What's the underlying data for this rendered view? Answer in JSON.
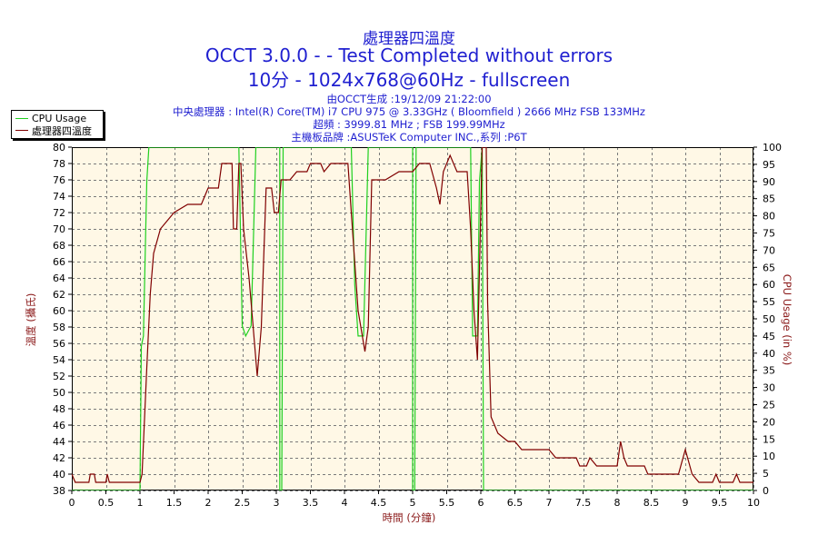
{
  "header": {
    "title_line1": "處理器四溫度",
    "title_line2": "OCCT 3.0.0 -  - Test Completed without errors",
    "title_line3": "10分 - 1024x768@60Hz - fullscreen",
    "sub1": "由OCCT生成 :19/12/09 21:22:00",
    "sub2": "中央處理器 : Intel(R) Core(TM) i7 CPU 975 @ 3.33GHz ( Bloomfield ) 2666 MHz FSB 133MHz",
    "sub3": "超頻 : 3999.81 MHz ; FSB 199.99MHz",
    "sub4": "主機板品牌 :ASUSTeK Computer INC.,系列 :P6T"
  },
  "colors": {
    "temp_line": "#800000",
    "usage_line": "#1fd01f",
    "plot_bg": "#fff8e6",
    "title": "#1f1fd0",
    "axis_label": "#8b1a1a"
  },
  "chart_data": {
    "type": "line",
    "xlabel": "時間 (分鐘)",
    "ylabel": "溫度 (攝氏)",
    "y2label": "CPU Usage (in %)",
    "xlim": [
      0,
      10
    ],
    "ylim": [
      38,
      80
    ],
    "y2lim": [
      0,
      100
    ],
    "xticks": [
      "0",
      "0.5",
      "1",
      "1.5",
      "2",
      "2.5",
      "3",
      "3.5",
      "4",
      "4.5",
      "5",
      "5.5",
      "6",
      "6.5",
      "7",
      "7.5",
      "8",
      "8.5",
      "9",
      "9.5",
      "10"
    ],
    "yticks": [
      "38",
      "40",
      "42",
      "44",
      "46",
      "48",
      "50",
      "52",
      "54",
      "56",
      "58",
      "60",
      "62",
      "64",
      "66",
      "68",
      "70",
      "72",
      "74",
      "76",
      "78",
      "80"
    ],
    "y2ticks": [
      "0",
      "5",
      "10",
      "15",
      "20",
      "25",
      "30",
      "35",
      "40",
      "45",
      "50",
      "55",
      "60",
      "65",
      "70",
      "75",
      "80",
      "85",
      "90",
      "95",
      "100"
    ],
    "grid": true,
    "legend_position": "top-left",
    "series": [
      {
        "name": "CPU Usage",
        "axis": "right",
        "points": [
          [
            0,
            0
          ],
          [
            1,
            0
          ],
          [
            1.02,
            42
          ],
          [
            1.05,
            45
          ],
          [
            1.1,
            90
          ],
          [
            1.13,
            100
          ],
          [
            2.45,
            100
          ],
          [
            2.5,
            48
          ],
          [
            2.55,
            45
          ],
          [
            2.63,
            48
          ],
          [
            2.7,
            100
          ],
          [
            3.05,
            100
          ],
          [
            3.05,
            0
          ],
          [
            3.08,
            0
          ],
          [
            3.1,
            100
          ],
          [
            4.1,
            100
          ],
          [
            4.15,
            60
          ],
          [
            4.2,
            45
          ],
          [
            4.28,
            45
          ],
          [
            4.35,
            100
          ],
          [
            5,
            100
          ],
          [
            5,
            0
          ],
          [
            5.03,
            0
          ],
          [
            5.05,
            100
          ],
          [
            5.85,
            100
          ],
          [
            5.88,
            45
          ],
          [
            5.95,
            45
          ],
          [
            5.98,
            90
          ],
          [
            6.02,
            100
          ],
          [
            6.04,
            0
          ],
          [
            10,
            0
          ]
        ]
      },
      {
        "name": "處理器四溫度",
        "axis": "left",
        "points": [
          [
            0,
            40
          ],
          [
            0.05,
            39
          ],
          [
            0.25,
            39
          ],
          [
            0.27,
            40
          ],
          [
            0.33,
            40
          ],
          [
            0.35,
            39
          ],
          [
            0.5,
            39
          ],
          [
            0.52,
            40
          ],
          [
            0.55,
            39
          ],
          [
            1,
            39
          ],
          [
            1.03,
            40
          ],
          [
            1.1,
            53
          ],
          [
            1.15,
            62
          ],
          [
            1.2,
            67
          ],
          [
            1.3,
            70
          ],
          [
            1.4,
            71
          ],
          [
            1.5,
            72
          ],
          [
            1.7,
            73
          ],
          [
            1.9,
            73
          ],
          [
            2,
            75
          ],
          [
            2.15,
            75
          ],
          [
            2.2,
            78
          ],
          [
            2.35,
            78
          ],
          [
            2.37,
            70
          ],
          [
            2.42,
            70
          ],
          [
            2.45,
            78
          ],
          [
            2.48,
            78
          ],
          [
            2.52,
            70
          ],
          [
            2.6,
            64
          ],
          [
            2.65,
            59
          ],
          [
            2.72,
            52
          ],
          [
            2.78,
            58
          ],
          [
            2.85,
            75
          ],
          [
            2.93,
            75
          ],
          [
            2.97,
            72
          ],
          [
            3.03,
            72
          ],
          [
            3.07,
            76
          ],
          [
            3.2,
            76
          ],
          [
            3.3,
            77
          ],
          [
            3.45,
            77
          ],
          [
            3.5,
            78
          ],
          [
            3.65,
            78
          ],
          [
            3.7,
            77
          ],
          [
            3.8,
            78
          ],
          [
            4.05,
            78
          ],
          [
            4.1,
            72
          ],
          [
            4.2,
            60
          ],
          [
            4.3,
            55
          ],
          [
            4.35,
            58
          ],
          [
            4.4,
            76
          ],
          [
            4.6,
            76
          ],
          [
            4.8,
            77
          ],
          [
            5,
            77
          ],
          [
            5.1,
            78
          ],
          [
            5.25,
            78
          ],
          [
            5.35,
            75
          ],
          [
            5.4,
            73
          ],
          [
            5.45,
            77
          ],
          [
            5.55,
            79
          ],
          [
            5.6,
            78
          ],
          [
            5.65,
            77
          ],
          [
            5.72,
            77
          ],
          [
            5.8,
            77
          ],
          [
            5.85,
            70
          ],
          [
            5.9,
            60
          ],
          [
            5.95,
            54
          ],
          [
            6.02,
            80
          ],
          [
            6.08,
            80
          ],
          [
            6.1,
            61
          ],
          [
            6.15,
            47
          ],
          [
            6.25,
            45
          ],
          [
            6.4,
            44
          ],
          [
            6.5,
            44
          ],
          [
            6.6,
            43
          ],
          [
            7,
            43
          ],
          [
            7.1,
            42
          ],
          [
            7.4,
            42
          ],
          [
            7.45,
            41
          ],
          [
            7.55,
            41
          ],
          [
            7.6,
            42
          ],
          [
            7.7,
            41
          ],
          [
            7.8,
            41
          ],
          [
            8,
            41
          ],
          [
            8.05,
            44
          ],
          [
            8.1,
            42
          ],
          [
            8.15,
            41
          ],
          [
            8.4,
            41
          ],
          [
            8.45,
            40
          ],
          [
            8.6,
            40
          ],
          [
            8.75,
            40
          ],
          [
            8.9,
            40
          ],
          [
            9,
            43
          ],
          [
            9.1,
            40
          ],
          [
            9.2,
            39
          ],
          [
            9.4,
            39
          ],
          [
            9.45,
            40
          ],
          [
            9.5,
            39
          ],
          [
            9.7,
            39
          ],
          [
            9.75,
            40
          ],
          [
            9.8,
            39
          ],
          [
            10,
            39
          ]
        ]
      }
    ]
  }
}
